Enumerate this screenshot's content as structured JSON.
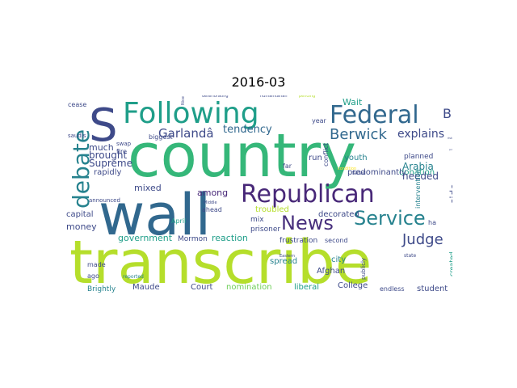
{
  "title": "2016-03",
  "palette": {
    "dark_purple": "#482878",
    "purple": "#472f7d",
    "blue": "#3e4a89",
    "steel": "#31688e",
    "teal": "#26828e",
    "sea": "#1f9e89",
    "green": "#35b779",
    "lime": "#6ece58",
    "yellow_green": "#b5de2b",
    "yellow": "#fde725"
  },
  "words": {
    "country": "country",
    "transcribe": "transcribe",
    "wall": "wall",
    "following": "Following",
    "s": "S",
    "debate": "debate",
    "federal": "Federal",
    "republican": "Republican",
    "news": "News",
    "service": "Service",
    "garland": "Garlandâ",
    "tendency": "tendency",
    "berwick": "Berwick",
    "judge": "Judge",
    "b": "B",
    "explains": "explains",
    "wait": "Wait",
    "donation": "donation",
    "arabia": "Arabia",
    "needed": "needed",
    "side": "side",
    "supreme": "Supreme",
    "brought": "brought",
    "much": "much",
    "mixed": "mixed",
    "among": "among",
    "rapidly": "rapidly",
    "money": "money",
    "capital": "capital",
    "government": "government",
    "reaction": "reaction",
    "decorated": "decorated",
    "predominantly": "predominantly",
    "youth": "youth",
    "run": "run",
    "planned": "planned",
    "troubled": "troubled",
    "spread": "spread",
    "city": "city",
    "afghan": "Afghan",
    "court": "Court",
    "nomination": "nomination",
    "liberal": "liberal",
    "college": "College",
    "endless": "endless",
    "student": "student",
    "maude": "Maude",
    "brightly": "Brightly",
    "frustration": "frustration",
    "second": "second",
    "mormon": "Mormon",
    "prisoner": "prisoner",
    "mix": "mix",
    "ahead": "ahead",
    "april": "April",
    "biggest": "biggest",
    "fire": "fire",
    "swap": "swap",
    "saudis": "saudis",
    "cease": "cease",
    "year": "year",
    "conflict": "conflict",
    "far": "far",
    "failed": "failed",
    "intervention": "intervention",
    "created": "created",
    "ha": "ha",
    "publicly": "publicly",
    "state": "state",
    "made": "made",
    "ago": "ago",
    "announced": "announced",
    "reported": "reported",
    "deteriorating": "deteriorating",
    "humanitarian": "humanitarian",
    "pending": "pending",
    "nice": "Nice",
    "middle": "Middle",
    "eastern": "Eastern",
    "risk": "risk",
    "put": "put",
    "condition": "condition"
  }
}
